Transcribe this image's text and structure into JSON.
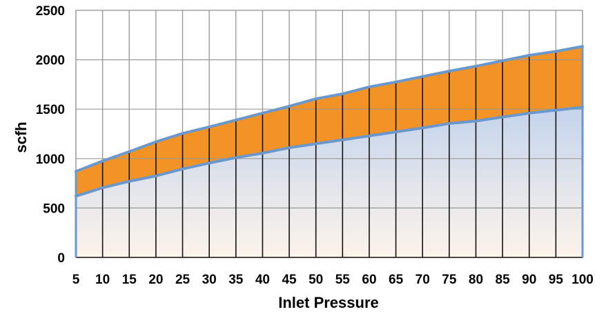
{
  "chart_data": {
    "type": "area",
    "title": "",
    "xlabel": "Inlet Pressure",
    "ylabel": "scfh",
    "xlim": [
      5,
      100
    ],
    "ylim": [
      0,
      2500
    ],
    "x": [
      5,
      10,
      15,
      20,
      25,
      30,
      35,
      40,
      45,
      50,
      55,
      60,
      65,
      70,
      75,
      80,
      85,
      90,
      95,
      100
    ],
    "x_tick_labels": [
      "5",
      "10",
      "15",
      "20",
      "25",
      "30",
      "35",
      "40",
      "45",
      "50",
      "55",
      "60",
      "65",
      "70",
      "75",
      "80",
      "85",
      "90",
      "95",
      "100"
    ],
    "y_tick_labels": [
      "0",
      "500",
      "1000",
      "1500",
      "2000",
      "2500"
    ],
    "y_ticks": [
      0,
      500,
      1000,
      1500,
      2000,
      2500
    ],
    "grid": true,
    "legend": "none",
    "series": [
      {
        "values": [
          620,
          705,
          770,
          825,
          895,
          955,
          1010,
          1055,
          1110,
          1150,
          1190,
          1230,
          1270,
          1310,
          1355,
          1380,
          1420,
          1460,
          1490,
          1520
        ],
        "color": "#cdd9ee"
      },
      {
        "values": [
          870,
          975,
          1070,
          1170,
          1255,
          1320,
          1390,
          1460,
          1530,
          1605,
          1655,
          1725,
          1775,
          1830,
          1885,
          1935,
          1990,
          2045,
          2085,
          2135
        ],
        "color": "#f39325"
      }
    ],
    "colors": {
      "upper_fill": "#f39325",
      "lower_fill_top": "#c4d4ec",
      "lower_fill_bottom": "#fdf4ea",
      "series_line": "#6b98cc",
      "gridline": "#9a9a9a",
      "dark_gridline": "#111111"
    }
  }
}
